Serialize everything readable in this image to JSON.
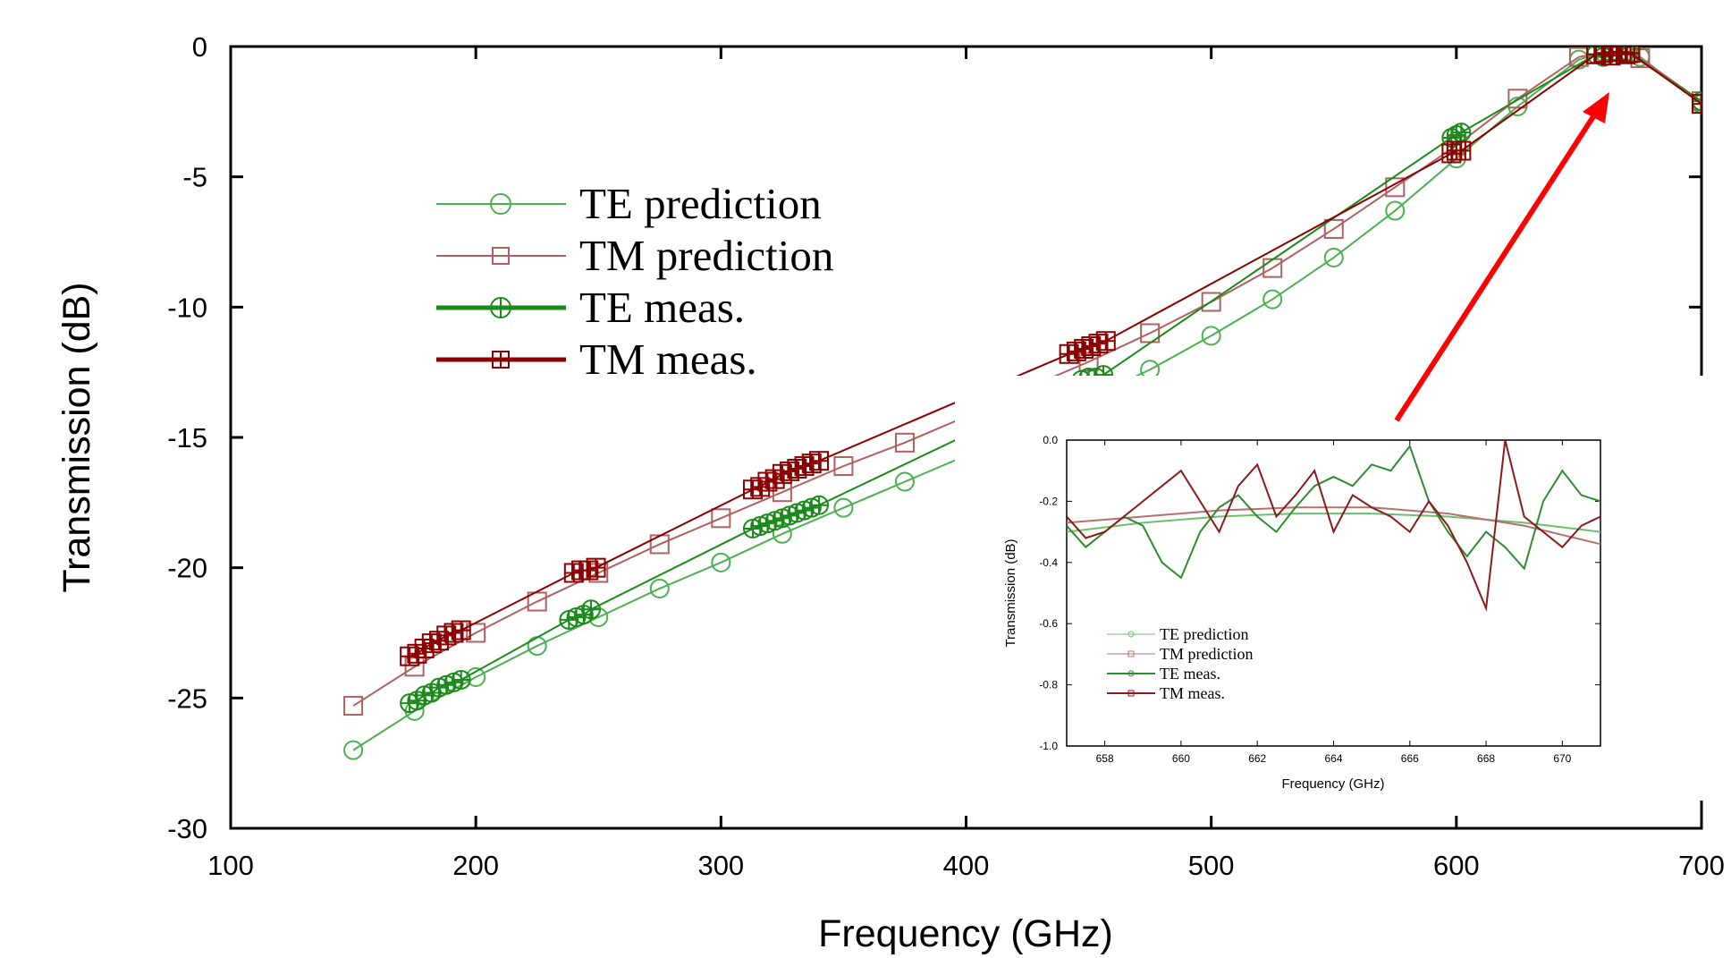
{
  "chart_data": [
    {
      "type": "line",
      "xlabel": "Frequency (GHz)",
      "ylabel": "Transmission (dB)",
      "xlim": [
        100,
        700
      ],
      "ylim": [
        -30,
        0
      ],
      "x_ticks": [
        100,
        200,
        300,
        400,
        500,
        600,
        700
      ],
      "x_tick_labels": [
        "100",
        "200",
        "300",
        "400",
        "500",
        "600",
        "700"
      ],
      "y_ticks": [
        0,
        -5,
        -10,
        -15,
        -20,
        -25,
        -30
      ],
      "y_tick_labels": [
        "0",
        "-5",
        "-10",
        "-15",
        "-20",
        "-25",
        "-30"
      ],
      "grid": false,
      "legend_position": "top-left",
      "series": [
        {
          "name": "TE prediction",
          "color": "#4caf50",
          "marker": "circle",
          "x": [
            150,
            175,
            200,
            225,
            250,
            275,
            300,
            325,
            350,
            375,
            400,
            425,
            450,
            475,
            500,
            525,
            550,
            575,
            600,
            625,
            650,
            660,
            670,
            675,
            700
          ],
          "y": [
            -27.0,
            -25.5,
            -24.2,
            -23.0,
            -21.9,
            -20.8,
            -19.8,
            -18.7,
            -17.7,
            -16.7,
            -15.7,
            -14.6,
            -13.5,
            -12.4,
            -11.1,
            -9.7,
            -8.1,
            -6.3,
            -4.3,
            -2.3,
            -0.5,
            -0.22,
            -0.25,
            -0.4,
            -2.2
          ]
        },
        {
          "name": "TM prediction",
          "color": "#b06060",
          "marker": "square",
          "x": [
            150,
            175,
            200,
            225,
            250,
            275,
            300,
            325,
            350,
            375,
            400,
            425,
            450,
            475,
            500,
            525,
            550,
            575,
            600,
            625,
            650,
            660,
            670,
            675,
            700
          ],
          "y": [
            -25.3,
            -23.8,
            -22.5,
            -21.3,
            -20.2,
            -19.1,
            -18.1,
            -17.1,
            -16.1,
            -15.2,
            -14.2,
            -13.1,
            -12.1,
            -11.0,
            -9.8,
            -8.5,
            -7.0,
            -5.4,
            -3.8,
            -2.0,
            -0.4,
            -0.23,
            -0.27,
            -0.45,
            -2.1
          ]
        },
        {
          "name": "TE meas.",
          "color": "#1a8a1a",
          "marker": "circle-plus",
          "x": [
            173,
            176,
            179,
            182,
            185,
            188,
            191,
            194,
            238,
            241,
            244,
            247,
            313,
            316,
            319,
            322,
            325,
            328,
            331,
            334,
            337,
            340,
            447,
            450,
            453,
            456,
            598,
            600,
            602,
            657,
            660,
            663,
            666,
            669,
            671,
            700
          ],
          "y": [
            -25.2,
            -25.1,
            -24.9,
            -24.8,
            -24.6,
            -24.5,
            -24.4,
            -24.3,
            -22.0,
            -21.9,
            -21.8,
            -21.6,
            -18.5,
            -18.4,
            -18.3,
            -18.2,
            -18.1,
            -18.0,
            -17.9,
            -17.8,
            -17.7,
            -17.6,
            -12.8,
            -12.7,
            -12.7,
            -12.6,
            -3.5,
            -3.4,
            -3.3,
            -0.3,
            -0.4,
            -0.2,
            -0.25,
            -0.2,
            -0.3,
            -2.1
          ]
        },
        {
          "name": "TM meas.",
          "color": "#8b0000",
          "marker": "square-plus",
          "x": [
            173,
            176,
            179,
            182,
            185,
            188,
            191,
            194,
            240,
            243,
            246,
            249,
            313,
            316,
            319,
            322,
            325,
            328,
            331,
            334,
            337,
            340,
            442,
            445,
            448,
            451,
            454,
            457,
            598,
            600,
            602,
            657,
            660,
            663,
            666,
            669,
            671,
            700
          ],
          "y": [
            -23.4,
            -23.3,
            -23.1,
            -22.9,
            -22.8,
            -22.6,
            -22.5,
            -22.4,
            -20.2,
            -20.1,
            -20.1,
            -20.0,
            -17.0,
            -16.9,
            -16.7,
            -16.6,
            -16.4,
            -16.3,
            -16.2,
            -16.1,
            -16.0,
            -15.9,
            -11.8,
            -11.7,
            -11.6,
            -11.5,
            -11.4,
            -11.3,
            -4.1,
            -4.0,
            -4.0,
            -0.3,
            -0.25,
            -0.35,
            -0.2,
            -0.3,
            -0.25,
            -2.2
          ]
        }
      ]
    },
    {
      "type": "line",
      "xlabel": "Frequency (GHz)",
      "ylabel": "Transmission (dB)",
      "xlim": [
        657,
        671
      ],
      "ylim": [
        -1.0,
        0.0
      ],
      "x_ticks": [
        658,
        660,
        662,
        664,
        666,
        668,
        670
      ],
      "x_tick_labels": [
        "658",
        "660",
        "662",
        "664",
        "666",
        "668",
        "670"
      ],
      "y_ticks": [
        0.0,
        -0.2,
        -0.4,
        -0.6,
        -0.8,
        -1.0
      ],
      "y_tick_labels": [
        "0.0",
        "-0.2",
        "-0.4",
        "-0.6",
        "-0.8",
        "-1.0"
      ],
      "grid": false,
      "legend_position": "bottom-left",
      "series": [
        {
          "name": "TE prediction",
          "color": "#6cbf6c",
          "x": [
            657,
            659,
            661,
            663,
            665,
            667,
            669,
            671
          ],
          "y": [
            -0.3,
            -0.27,
            -0.25,
            -0.24,
            -0.24,
            -0.25,
            -0.27,
            -0.3
          ]
        },
        {
          "name": "TM prediction",
          "color": "#b57070",
          "x": [
            657,
            659,
            661,
            663,
            665,
            667,
            669,
            671
          ],
          "y": [
            -0.27,
            -0.25,
            -0.23,
            -0.22,
            -0.22,
            -0.24,
            -0.28,
            -0.34
          ]
        },
        {
          "name": "TE meas.",
          "color": "#2e8b2e",
          "x": [
            657,
            657.5,
            658,
            658.5,
            659,
            659.5,
            660,
            660.5,
            661,
            661.5,
            662,
            662.5,
            663,
            663.5,
            664,
            664.5,
            665,
            665.5,
            666,
            666.5,
            667,
            667.5,
            668,
            668.5,
            669,
            669.5,
            670,
            670.5,
            671
          ],
          "y": [
            -0.28,
            -0.35,
            -0.3,
            -0.25,
            -0.28,
            -0.4,
            -0.45,
            -0.3,
            -0.22,
            -0.18,
            -0.25,
            -0.3,
            -0.22,
            -0.15,
            -0.12,
            -0.15,
            -0.08,
            -0.1,
            -0.02,
            -0.2,
            -0.3,
            -0.38,
            -0.3,
            -0.35,
            -0.42,
            -0.2,
            -0.1,
            -0.18,
            -0.2
          ]
        },
        {
          "name": "TM meas.",
          "color": "#8b1a1a",
          "x": [
            657,
            657.5,
            658,
            658.5,
            659,
            659.5,
            660,
            660.5,
            661,
            661.5,
            662,
            662.5,
            663,
            663.5,
            664,
            664.5,
            665,
            665.5,
            666,
            666.5,
            667,
            667.5,
            668,
            668.5,
            669,
            669.5,
            670,
            670.5,
            671
          ],
          "y": [
            -0.25,
            -0.32,
            -0.3,
            -0.25,
            -0.2,
            -0.15,
            -0.1,
            -0.2,
            -0.3,
            -0.15,
            -0.08,
            -0.25,
            -0.18,
            -0.1,
            -0.3,
            -0.18,
            -0.22,
            -0.25,
            -0.3,
            -0.2,
            -0.28,
            -0.4,
            -0.55,
            0.0,
            -0.25,
            -0.3,
            -0.35,
            -0.28,
            -0.25
          ]
        }
      ]
    }
  ],
  "arrow_color": "#ff0000"
}
